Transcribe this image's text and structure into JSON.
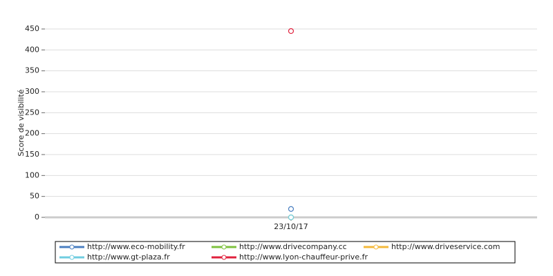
{
  "chart_data": {
    "type": "line",
    "y_label": "Score de visibilité",
    "categories": [
      "23/10/17"
    ],
    "series": [
      {
        "name": "http://www.eco-mobility.fr",
        "color": "#4a7fc1",
        "values": [
          20
        ]
      },
      {
        "name": "http://www.drivecompany.cc",
        "color": "#7dc23e",
        "values": [
          0
        ]
      },
      {
        "name": "http://www.driveservice.com",
        "color": "#f4b83a",
        "values": [
          0
        ]
      },
      {
        "name": "http://www.gt-plaza.fr",
        "color": "#6fcde0",
        "values": [
          0
        ]
      },
      {
        "name": "http://www.lyon-chauffeur-prive.fr",
        "color": "#e0203c",
        "values": [
          445
        ]
      }
    ],
    "ylim": [
      0,
      450
    ],
    "yticks": [
      0,
      50,
      100,
      150,
      200,
      250,
      300,
      350,
      400,
      450
    ],
    "grid": true,
    "legend": "bottom"
  }
}
